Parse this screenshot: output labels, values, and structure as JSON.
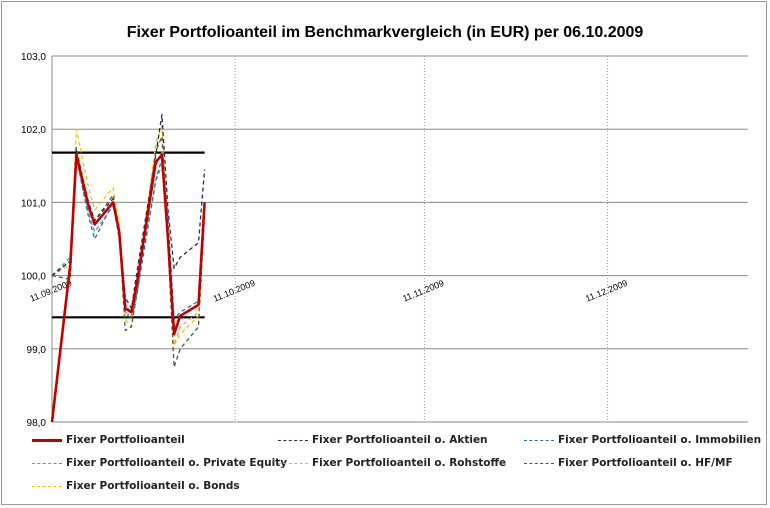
{
  "chart_data": {
    "type": "line",
    "title": "Fixer Portfolioanteil  im Benchmarkvergleich (in EUR) per 06.10.2009",
    "xlabel": "",
    "ylabel": "",
    "ylim": [
      98.0,
      103.0
    ],
    "y_ticks": [
      "98,0",
      "99,0",
      "100,0",
      "101,0",
      "102,0",
      "103,0"
    ],
    "x_ticks": [
      "11.09.2009",
      "11.10.2009",
      "11.11.2009",
      "11.12.2009"
    ],
    "x_tick_dates": [
      "2009-09-11",
      "2009-10-11",
      "2009-11-11",
      "2009-12-11"
    ],
    "x_range": [
      "2009-09-11",
      "2010-01-03"
    ],
    "grid": {
      "horizontal": true,
      "vertical_dotted": true
    },
    "legend_position": "bottom",
    "reference_lines": [
      {
        "y": 101.68,
        "x_end": "2009-10-06",
        "color": "#000000"
      },
      {
        "y": 99.43,
        "x_end": "2009-10-06",
        "color": "#000000"
      }
    ],
    "dates": [
      "2009-09-11",
      "2009-09-14",
      "2009-09-15",
      "2009-09-16",
      "2009-09-17",
      "2009-09-18",
      "2009-09-21",
      "2009-09-22",
      "2009-09-23",
      "2009-09-24",
      "2009-09-25",
      "2009-09-28",
      "2009-09-29",
      "2009-09-30",
      "2009-10-01",
      "2009-10-02",
      "2009-10-05",
      "2009-10-06"
    ],
    "series": [
      {
        "name": "Fixer Portfolioanteil",
        "color": "#c00000",
        "width": 2.6,
        "dash": "",
        "values": [
          98.0,
          100.15,
          101.65,
          101.3,
          100.95,
          100.7,
          101.0,
          100.6,
          99.55,
          99.5,
          99.95,
          101.55,
          101.65,
          100.5,
          99.2,
          99.45,
          99.6,
          101.0
        ]
      },
      {
        "name": "Fixer Portfolioanteil o. Aktien",
        "color": "#1f2d52",
        "width": 1.3,
        "dash": "4,3",
        "values": [
          100.0,
          100.2,
          101.7,
          101.3,
          101.0,
          100.75,
          101.05,
          100.55,
          99.7,
          99.55,
          100.1,
          101.65,
          102.2,
          100.9,
          100.1,
          100.25,
          100.45,
          101.45
        ]
      },
      {
        "name": "Fixer Portfolioanteil o. Immobilien",
        "color": "#2e6ca8",
        "width": 1.3,
        "dash": "4,3",
        "values": [
          100.0,
          100.2,
          101.7,
          101.2,
          100.8,
          100.5,
          101.0,
          100.5,
          99.5,
          99.4,
          99.8,
          101.3,
          101.6,
          100.8,
          99.4,
          99.5,
          99.65,
          100.9
        ]
      },
      {
        "name": "Fixer Portfolioanteil o. Private Equity",
        "color": "#3aa6b6",
        "width": 1.3,
        "dash": "4,3",
        "values": [
          100.0,
          100.25,
          101.6,
          101.2,
          100.85,
          100.6,
          100.95,
          100.6,
          99.6,
          99.5,
          99.9,
          101.3,
          101.5,
          100.6,
          99.3,
          99.45,
          99.6,
          100.9
        ]
      },
      {
        "name": "Fixer Portfolioanteil o. Rohstoffe",
        "color": "#f4a460",
        "width": 1.3,
        "dash": "4,3",
        "values": [
          100.0,
          100.15,
          101.6,
          101.25,
          100.9,
          100.7,
          101.0,
          100.55,
          99.5,
          99.45,
          99.9,
          101.5,
          101.7,
          100.6,
          99.05,
          99.3,
          99.5,
          100.95
        ]
      },
      {
        "name": "Fixer Portfolioanteil o. HF/MF",
        "color": "#4b5d30",
        "width": 1.3,
        "dash": "4,3",
        "values": [
          100.0,
          99.95,
          101.75,
          101.35,
          101.0,
          100.75,
          101.1,
          100.6,
          99.25,
          99.3,
          99.8,
          101.7,
          101.9,
          100.4,
          98.75,
          99.0,
          99.3,
          100.85
        ]
      },
      {
        "name": "Fixer Portfolioanteil o. Bonds",
        "color": "#f5c400",
        "width": 1.3,
        "dash": "4,3",
        "values": [
          100.0,
          100.2,
          102.0,
          101.6,
          101.2,
          100.9,
          101.2,
          100.7,
          99.4,
          99.3,
          99.9,
          101.8,
          102.05,
          100.6,
          99.05,
          99.2,
          99.45,
          100.9
        ]
      }
    ]
  },
  "legend": {
    "items": [
      {
        "label": "Fixer Portfolioanteil",
        "color": "#c00000"
      },
      {
        "label": "Fixer Portfolioanteil o. Aktien",
        "color": "#1f2d52"
      },
      {
        "label": "Fixer Portfolioanteil o. Immobilien",
        "color": "#2e6ca8"
      },
      {
        "label": "Fixer Portfolioanteil o. Private Equity",
        "color": "#3aa6b6"
      },
      {
        "label": "Fixer Portfolioanteil o. Rohstoffe",
        "color": "#f4a460"
      },
      {
        "label": "Fixer Portfolioanteil o. HF/MF",
        "color": "#4b5d30"
      },
      {
        "label": "Fixer Portfolioanteil o. Bonds",
        "color": "#f5c400"
      }
    ]
  }
}
